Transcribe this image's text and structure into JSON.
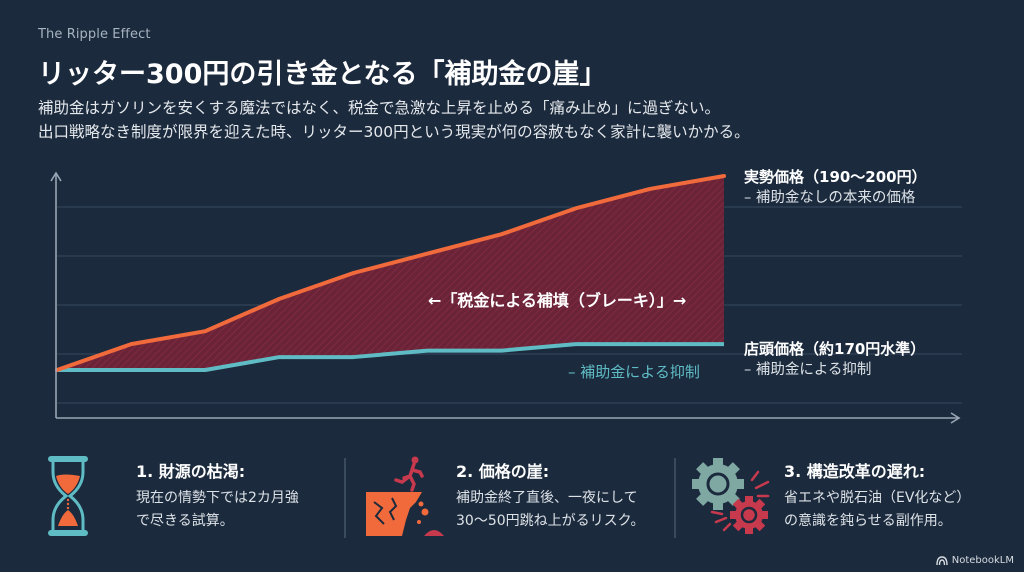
{
  "header": {
    "eyebrow": "The Ripple Effect",
    "title": "リッター300円の引き金となる「補助金の崖」",
    "subtitle_lines": [
      "補助金はガソリンを安くする魔法ではなく、税金で急激な上昇を止める「痛み止め」に過ぎない。",
      "出口戦略なき制度が限界を迎えた時、リッター300円という現実が何の容赦もなく家計に襲いかかる。"
    ]
  },
  "legend": {
    "actual": {
      "title": "実勢価格（190〜200円）",
      "sub": "– 補助金なしの本来の価格"
    },
    "retail": {
      "title": "店頭価格（約170円水準）",
      "sub": "– 補助金による抑制"
    }
  },
  "annotations": {
    "gap": "←「税金による補填（ブレーキ）」→",
    "teal_line": "– 補助金による抑制"
  },
  "colors": {
    "background": "#1b2a3d",
    "actual_line": "#f06a3c",
    "retail_line": "#5fbcc4",
    "gap_fill": "#6b2338",
    "axis": "#9aa6b4",
    "grid": "#3a4b5f"
  },
  "chart_data": {
    "type": "area",
    "title": "リッター300円の引き金となる「補助金の崖」",
    "xlabel": "",
    "ylabel": "",
    "x": [
      0,
      1,
      2,
      3,
      4,
      5,
      6,
      7,
      8,
      9
    ],
    "series": [
      {
        "name": "実勢価格（190〜200円）– 補助金なしの本来の価格",
        "color": "#f06a3c",
        "values": [
          170,
          174,
          176,
          181,
          185,
          188,
          191,
          195,
          198,
          200
        ]
      },
      {
        "name": "店頭価格（約170円水準）– 補助金による抑制",
        "color": "#5fbcc4",
        "values": [
          170,
          170,
          170,
          172,
          172,
          173,
          173,
          174,
          174,
          174
        ]
      }
    ],
    "shaded_region": {
      "between": [
        "実勢価格",
        "店頭価格"
      ],
      "label": "「税金による補填（ブレーキ）」"
    },
    "grid": true,
    "ticks": "none",
    "legend_position": "right"
  },
  "cards": [
    {
      "icon": "hourglass-icon",
      "title": "1. 財源の枯渇:",
      "body": [
        "現在の情勢下では2カ月強",
        "で尽きる試算。"
      ]
    },
    {
      "icon": "cliff-icon",
      "title": "2. 価格の崖:",
      "body": [
        "補助金終了直後、一夜にして",
        "30〜50円跳ね上がるリスク。"
      ]
    },
    {
      "icon": "gears-icon",
      "title": "3. 構造改革の遅れ:",
      "body": [
        "省エネや脱石油（EV化など）",
        "の意識を鈍らせる副作用。"
      ]
    }
  ],
  "brand": {
    "label": "NotebookLM"
  }
}
